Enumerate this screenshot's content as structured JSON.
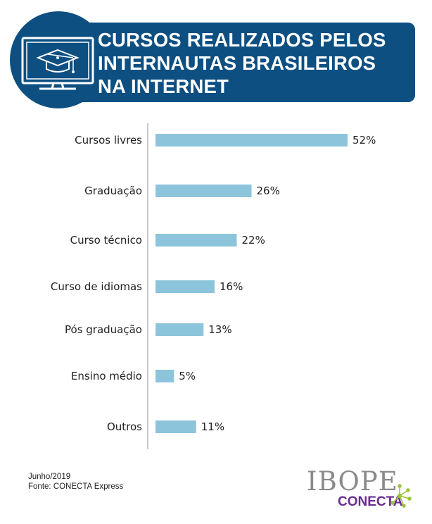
{
  "header": {
    "title_line1": "CURSOS REALIZADOS PELOS",
    "title_line2": "INTERNAUTAS BRASILEIROS",
    "title_line3": "NA INTERNET",
    "icon": "monitor-graduation-cap-icon",
    "color": "#0e4f82"
  },
  "chart_data": {
    "type": "bar",
    "orientation": "horizontal",
    "categories": [
      "Cursos livres",
      "Graduação",
      "Curso técnico",
      "Curso de idiomas",
      "Pós graduação",
      "Ensino médio",
      "Outros"
    ],
    "values": [
      52,
      26,
      22,
      16,
      13,
      5,
      11
    ],
    "value_labels": [
      "52%",
      "26%",
      "22%",
      "16%",
      "13%",
      "5%",
      "11%"
    ],
    "bar_color": "#8cc4dc",
    "axis_color": "#cccccc",
    "grid": false,
    "xlim": [
      0,
      52
    ]
  },
  "footer": {
    "date": "Junho/2019",
    "source": "Fonte: CONECTA Express"
  },
  "logo": {
    "brand": "IBOPE",
    "sub": "CONECTA",
    "brand_color": "#8a8a8a",
    "sub_color": "#6a2c91",
    "spark_color": "#9ac43c"
  }
}
